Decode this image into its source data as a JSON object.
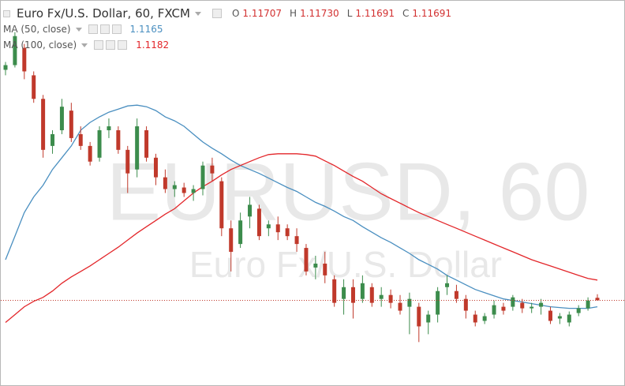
{
  "chart_data": {
    "type": "candlestick",
    "title": "Euro Fx/U.S. Dollar, 60, FXCM",
    "ohlc_labels": [
      {
        "key": "O",
        "value": "1.11707"
      },
      {
        "key": "H",
        "value": "1.11730"
      },
      {
        "key": "L",
        "value": "1.11691"
      },
      {
        "key": "C",
        "value": "1.11691"
      }
    ],
    "watermark": "EURUSD, 60",
    "watermark_subtitle": "Euro Fx/U.S. Dollar",
    "ylim": [
      1.1115,
      1.136
    ],
    "up_color": "#3c8c4c",
    "down_color": "#c0392b",
    "last_price_color": "#c0392b",
    "open": [
      1.1316,
      1.1319,
      1.133,
      1.13125,
      1.12975,
      1.12675,
      1.12775,
      1.129,
      1.1275,
      1.12675,
      1.126,
      1.12775,
      1.12775,
      1.1265,
      1.12525,
      1.12775,
      1.126,
      1.12475,
      1.124,
      1.1241,
      1.12375,
      1.124,
      1.1255,
      1.1245,
      1.1215,
      1.1205,
      1.12225,
      1.12275,
      1.1215,
      1.12175,
      1.1215,
      1.121,
      1.12025,
      1.119,
      1.11925,
      1.11825,
      1.117,
      1.11775,
      1.117,
      1.11775,
      1.117,
      1.11725,
      1.11675,
      1.1165,
      1.1165,
      1.1155,
      1.116,
      1.11775,
      1.1175,
      1.117,
      1.116,
      1.1156,
      1.116,
      1.1165,
      1.1165,
      1.11675,
      1.1164,
      1.1165,
      1.11625,
      1.11575,
      1.1155,
      1.1161,
      1.1164,
      1.11707
    ],
    "high": [
      1.1321,
      1.134,
      1.13325,
      1.1315,
      1.13,
      1.12775,
      1.12975,
      1.1295,
      1.128,
      1.127,
      1.128,
      1.1285,
      1.128,
      1.12675,
      1.1285,
      1.128,
      1.12625,
      1.12525,
      1.1245,
      1.1244,
      1.12425,
      1.12575,
      1.126,
      1.12475,
      1.122,
      1.1225,
      1.1235,
      1.123,
      1.122,
      1.12225,
      1.12175,
      1.1215,
      1.1205,
      1.11975,
      1.12,
      1.1185,
      1.11825,
      1.11825,
      1.1185,
      1.118,
      1.11775,
      1.1176,
      1.11725,
      1.1174,
      1.11675,
      1.11625,
      1.11775,
      1.1185,
      1.1179,
      1.11725,
      1.11625,
      1.1161,
      1.1169,
      1.11675,
      1.11725,
      1.117,
      1.11675,
      1.117,
      1.1165,
      1.1161,
      1.1162,
      1.1166,
      1.1171,
      1.1173
    ],
    "low": [
      1.13125,
      1.13175,
      1.131,
      1.1295,
      1.126,
      1.12625,
      1.1275,
      1.127,
      1.1265,
      1.1255,
      1.12575,
      1.12725,
      1.12625,
      1.12375,
      1.12475,
      1.12575,
      1.12425,
      1.12375,
      1.1235,
      1.1235,
      1.12325,
      1.1236,
      1.1245,
      1.121,
      1.11875,
      1.12025,
      1.1215,
      1.12075,
      1.121,
      1.12075,
      1.12075,
      1.12,
      1.1185,
      1.11825,
      1.118,
      1.1165,
      1.116,
      1.11575,
      1.11675,
      1.1165,
      1.1165,
      1.1164,
      1.116,
      1.11475,
      1.11425,
      1.11475,
      1.1155,
      1.11725,
      1.11675,
      1.11575,
      1.11525,
      1.1154,
      1.11575,
      1.116,
      1.11625,
      1.1161,
      1.1161,
      1.116,
      1.1154,
      1.1154,
      1.11525,
      1.1159,
      1.11625,
      1.11691
    ],
    "close": [
      1.1319,
      1.13375,
      1.1315,
      1.12975,
      1.1265,
      1.1275,
      1.12925,
      1.12725,
      1.12675,
      1.12575,
      1.12775,
      1.128,
      1.1265,
      1.125,
      1.128,
      1.126,
      1.12475,
      1.124,
      1.12425,
      1.12375,
      1.124,
      1.1255,
      1.125,
      1.1215,
      1.12,
      1.122,
      1.123,
      1.121,
      1.12175,
      1.12125,
      1.121,
      1.1205,
      1.11875,
      1.11925,
      1.1185,
      1.11675,
      1.11775,
      1.11675,
      1.118,
      1.11675,
      1.11725,
      1.11675,
      1.11625,
      1.117,
      1.11525,
      1.116,
      1.1175,
      1.118,
      1.117,
      1.11625,
      1.1155,
      1.1159,
      1.1166,
      1.11625,
      1.1171,
      1.1164,
      1.1165,
      1.11675,
      1.1156,
      1.1159,
      1.116,
      1.1164,
      1.1169,
      1.11691
    ],
    "indicators": [
      {
        "name": "MA (50, close)",
        "value": 1.1165,
        "color": "#4a8fc0",
        "values": [
          1.1195,
          1.121,
          1.1225,
          1.1235,
          1.12425,
          1.12525,
          1.126,
          1.12675,
          1.12775,
          1.12825,
          1.1286,
          1.1289,
          1.1291,
          1.1293,
          1.12935,
          1.12925,
          1.129,
          1.1286,
          1.12835,
          1.128,
          1.1275,
          1.127,
          1.1266,
          1.12625,
          1.12585,
          1.1255,
          1.12525,
          1.125,
          1.1247,
          1.1244,
          1.1241,
          1.12385,
          1.1235,
          1.12315,
          1.1229,
          1.1226,
          1.12225,
          1.122,
          1.1216,
          1.12125,
          1.1209,
          1.1206,
          1.12025,
          1.1199,
          1.1195,
          1.1192,
          1.1189,
          1.1185,
          1.1182,
          1.1179,
          1.1176,
          1.1174,
          1.1172,
          1.117,
          1.1169,
          1.1168,
          1.1167,
          1.1166,
          1.1165,
          1.11645,
          1.1164,
          1.1164,
          1.1164,
          1.1165
        ]
      },
      {
        "name": "MA (100, close)",
        "value": 1.1182,
        "color": "#e3262a",
        "values": [
          1.1155,
          1.116,
          1.1165,
          1.11685,
          1.1171,
          1.1175,
          1.118,
          1.1184,
          1.11875,
          1.1191,
          1.1195,
          1.1199,
          1.1203,
          1.12075,
          1.1212,
          1.1216,
          1.122,
          1.1224,
          1.12275,
          1.12325,
          1.12375,
          1.12415,
          1.1245,
          1.1249,
          1.12525,
          1.1255,
          1.12575,
          1.126,
          1.1262,
          1.12625,
          1.12625,
          1.12625,
          1.1262,
          1.1261,
          1.1258,
          1.1255,
          1.12515,
          1.1248,
          1.1245,
          1.1241,
          1.1237,
          1.1234,
          1.1231,
          1.1228,
          1.1225,
          1.12225,
          1.122,
          1.12175,
          1.1215,
          1.12125,
          1.121,
          1.12075,
          1.1205,
          1.12025,
          1.12,
          1.11975,
          1.1195,
          1.1193,
          1.1191,
          1.1189,
          1.1187,
          1.1185,
          1.1183,
          1.1182
        ]
      }
    ]
  }
}
